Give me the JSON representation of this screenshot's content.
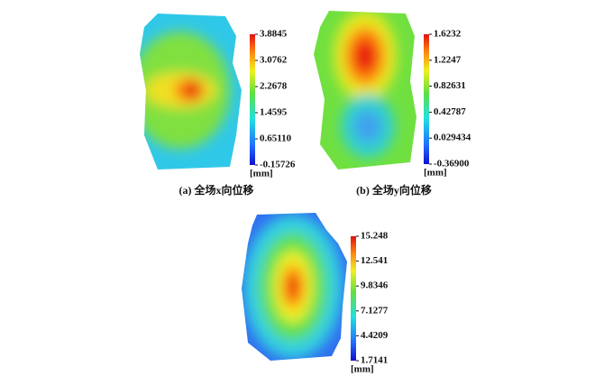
{
  "chart_data": [
    {
      "type": "contour",
      "caption": "(a) 全场x向位移",
      "unit": "[mm]",
      "clim": [
        -0.15726,
        3.8845
      ],
      "cticks": [
        3.8845,
        3.0762,
        2.2678,
        1.4595,
        {
          "value": 0.6511,
          "label": "0.65110"
        },
        -0.15726
      ]
    },
    {
      "type": "contour",
      "caption": "(b) 全场y向位移",
      "unit": "[mm]",
      "clim": [
        -0.369,
        1.6232
      ],
      "cticks": [
        1.6232,
        1.2247,
        0.82631,
        0.42787,
        0.029434,
        {
          "value": -0.369,
          "label": "-0.36900"
        }
      ]
    },
    {
      "type": "contour",
      "unit": "[mm]",
      "clim": [
        1.7141,
        15.248
      ],
      "cticks": [
        15.248,
        12.541,
        9.8346,
        7.1277,
        4.4209,
        1.7141
      ]
    }
  ]
}
